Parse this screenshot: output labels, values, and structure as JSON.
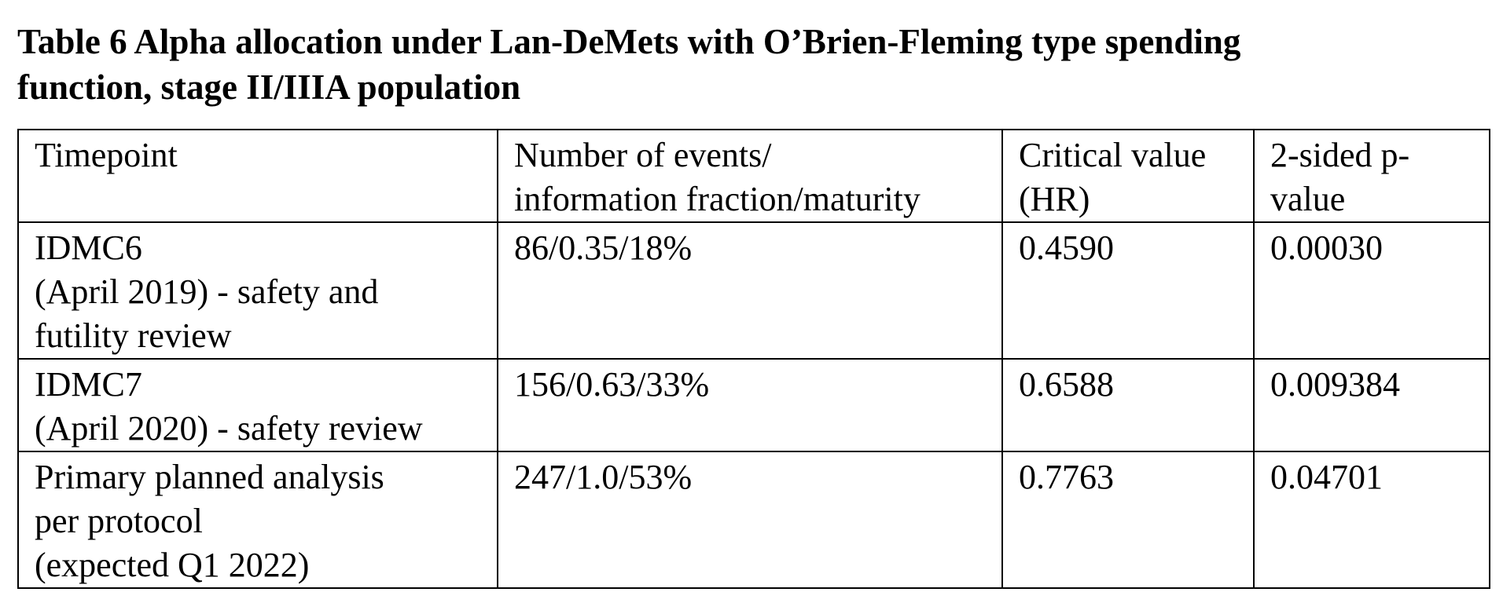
{
  "caption": {
    "line1": "Table 6 Alpha allocation under Lan-DeMets with O’Brien-Fleming type spending",
    "line2": "function, stage II/IIIA population"
  },
  "table": {
    "headers": [
      [
        "Timepoint"
      ],
      [
        "Number of events/",
        "information fraction/maturity"
      ],
      [
        "Critical value",
        "(HR)"
      ],
      [
        "2-sided p-",
        "value"
      ]
    ],
    "rows": [
      {
        "timepoint": [
          "IDMC6",
          "(April 2019) - safety and",
          "futility review"
        ],
        "events": "86/0.35/18%",
        "critical_value": "0.4590",
        "p_value": "0.00030"
      },
      {
        "timepoint": [
          "IDMC7",
          "(April 2020) - safety review"
        ],
        "events": "156/0.63/33%",
        "critical_value": "0.6588",
        "p_value": "0.009384"
      },
      {
        "timepoint": [
          "Primary planned analysis",
          "per protocol",
          "(expected Q1 2022)"
        ],
        "events": "247/1.0/53%",
        "critical_value": "0.7763",
        "p_value": "0.04701"
      }
    ]
  }
}
